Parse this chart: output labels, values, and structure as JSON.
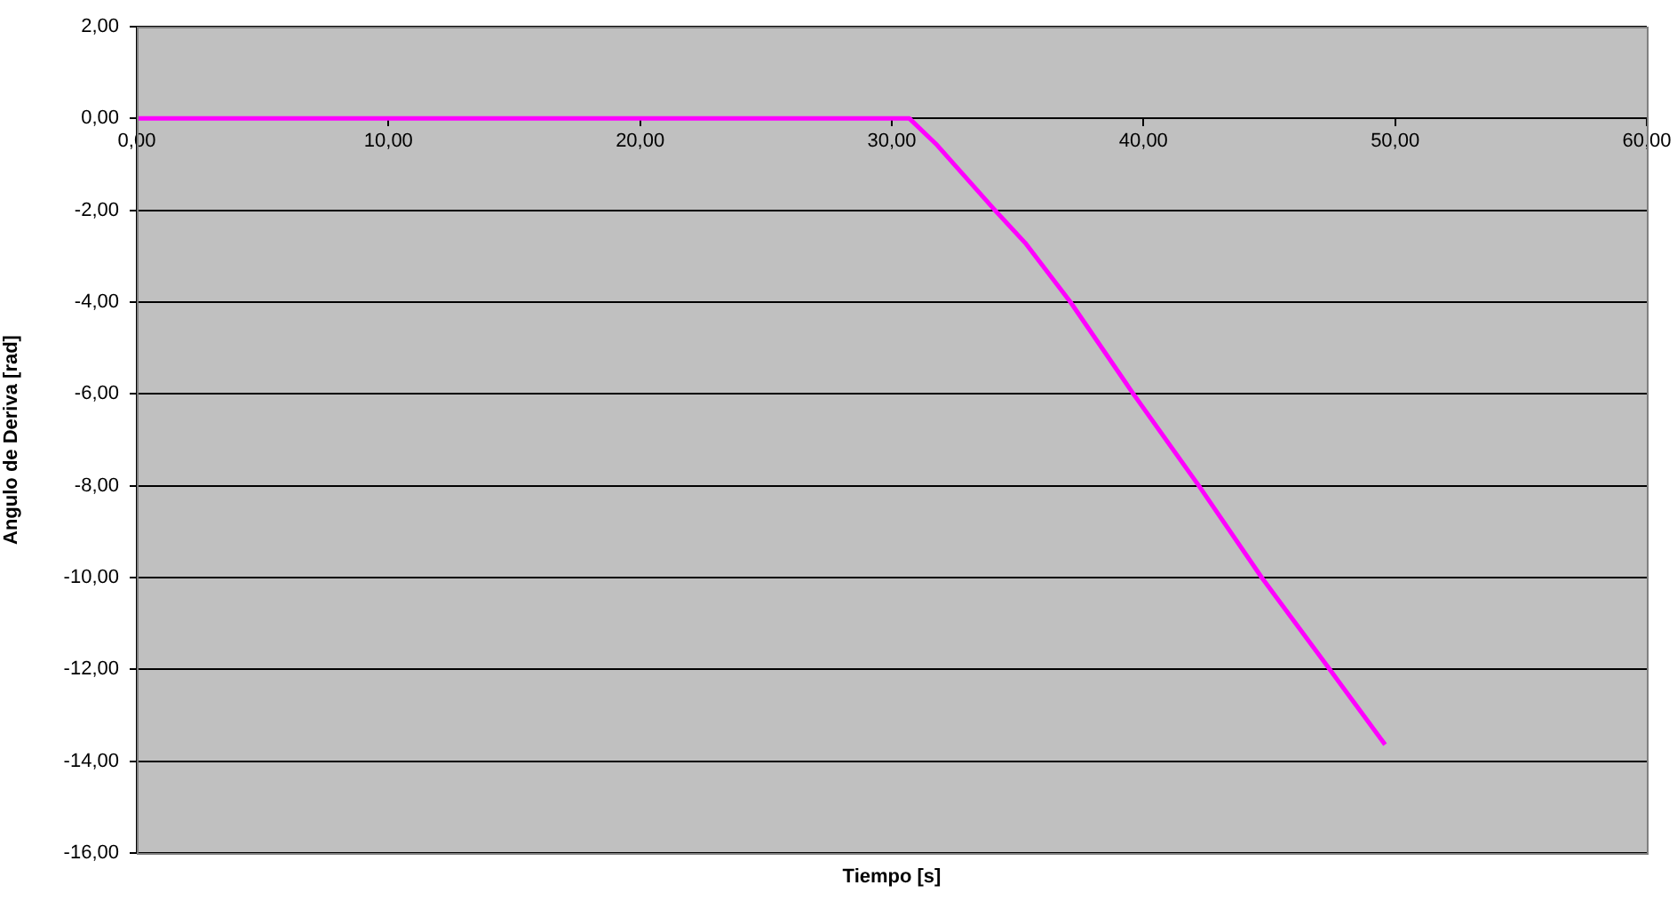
{
  "chart_data": {
    "type": "line",
    "xlabel": "Tiempo [s]",
    "ylabel": "Angulo de Deriva [rad]",
    "series": [
      {
        "color": "#ff00ff",
        "x": [
          0,
          30.7,
          31.8,
          34.1,
          35.3,
          37.1,
          39.6,
          42.2,
          44.7,
          47.4,
          49.6
        ],
        "values": [
          0,
          0,
          -0.58,
          -2,
          -2.71,
          -4,
          -6,
          -8,
          -10,
          -12,
          -13.64
        ]
      }
    ],
    "xlim": [
      0,
      60
    ],
    "xticks": [
      {
        "value": 0,
        "label": "0,00"
      },
      {
        "value": 10,
        "label": "10,00"
      },
      {
        "value": 20,
        "label": "20,00"
      },
      {
        "value": 30,
        "label": "30,00"
      },
      {
        "value": 40,
        "label": "40,00"
      },
      {
        "value": 50,
        "label": "50,00"
      },
      {
        "value": 60,
        "label": "60,00"
      }
    ],
    "ylim": [
      -16,
      2
    ],
    "yticks": [
      {
        "value": -16,
        "label": "-16,00"
      },
      {
        "value": -14,
        "label": "-14,00"
      },
      {
        "value": -12,
        "label": "-12,00"
      },
      {
        "value": -10,
        "label": "-10,00"
      },
      {
        "value": -8,
        "label": "-8,00"
      },
      {
        "value": -6,
        "label": "-6,00"
      },
      {
        "value": -4,
        "label": "-4,00"
      },
      {
        "value": -2,
        "label": "-2,00"
      },
      {
        "value": 0,
        "label": "0,00"
      },
      {
        "value": 2,
        "label": "2,00"
      }
    ],
    "grid": "y",
    "legend": false,
    "marker": "none",
    "line_style": "solid"
  }
}
